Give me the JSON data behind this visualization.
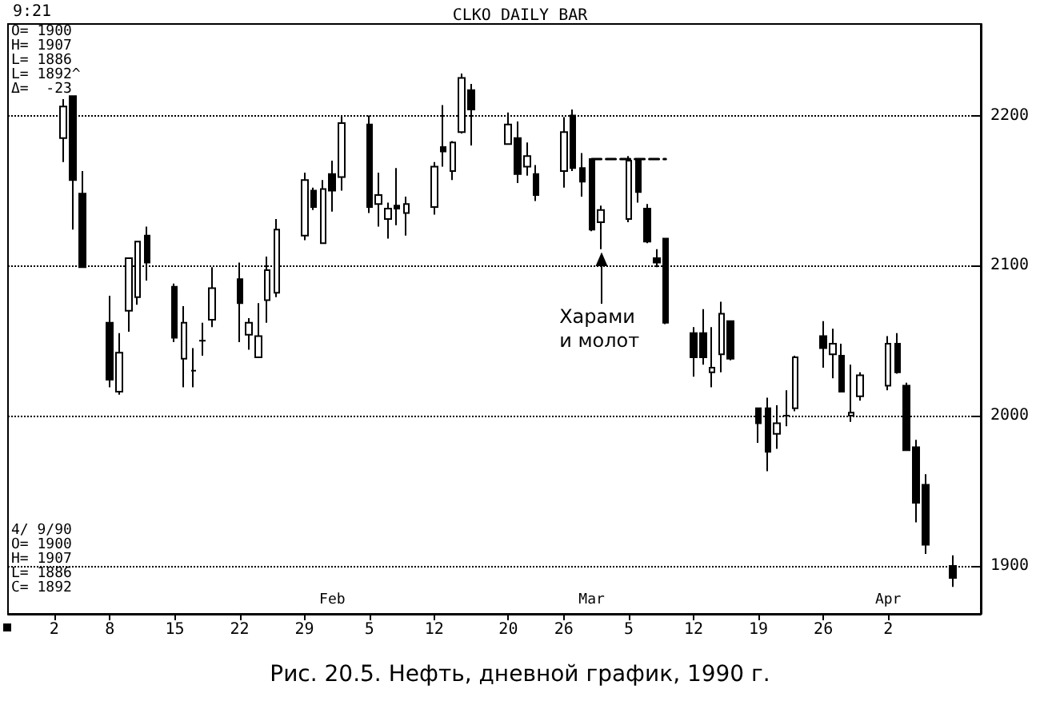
{
  "chart_data": {
    "type": "candlestick",
    "title": "CLKO DAILY BAR",
    "annotations": [
      "9:21",
      "O= 1900\nH= 1907\nL= 1886\nL= 1892^\nΔ=  -23",
      "4/ 9/90\nO= 1900\nH= 1907\nL= 1886\nC= 1892",
      {
        "text": "Харами\nи молот",
        "x": "1990-03-02",
        "y": 2111
      },
      "Рис. 20.5. Нефть, дневной график, 1990 г."
    ],
    "x": [
      "1990-01-03",
      "1990-01-04",
      "1990-01-05",
      "1990-01-08",
      "1990-01-09",
      "1990-01-10",
      "1990-01-11",
      "1990-01-12",
      "1990-01-15",
      "1990-01-16",
      "1990-01-17",
      "1990-01-18",
      "1990-01-19",
      "1990-01-22",
      "1990-01-23",
      "1990-01-24",
      "1990-01-25",
      "1990-01-26",
      "1990-01-29",
      "1990-01-30",
      "1990-01-31",
      "1990-02-01",
      "1990-02-02",
      "1990-02-05",
      "1990-02-06",
      "1990-02-07",
      "1990-02-08",
      "1990-02-09",
      "1990-02-12",
      "1990-02-13",
      "1990-02-14",
      "1990-02-15",
      "1990-02-16",
      "1990-02-20",
      "1990-02-21",
      "1990-02-22",
      "1990-02-23",
      "1990-02-26",
      "1990-02-27",
      "1990-02-28",
      "1990-03-01",
      "1990-03-02",
      "1990-03-05",
      "1990-03-06",
      "1990-03-07",
      "1990-03-08",
      "1990-03-09",
      "1990-03-12",
      "1990-03-13",
      "1990-03-14",
      "1990-03-15",
      "1990-03-16",
      "1990-03-19",
      "1990-03-20",
      "1990-03-21",
      "1990-03-22",
      "1990-03-23",
      "1990-03-26",
      "1990-03-27",
      "1990-03-28",
      "1990-03-29",
      "1990-03-30",
      "1990-04-02",
      "1990-04-03",
      "1990-04-04",
      "1990-04-05",
      "1990-04-06",
      "1990-04-09"
    ],
    "ohlc": [
      [
        2185,
        2211,
        2169,
        2206
      ],
      [
        2213,
        2213,
        2124,
        2157
      ],
      [
        2148,
        2163,
        2099,
        2099
      ],
      [
        2062,
        2080,
        2019,
        2024
      ],
      [
        2016,
        2055,
        2014,
        2042
      ],
      [
        2070,
        2105,
        2056,
        2105
      ],
      [
        2079,
        2116,
        2074,
        2116
      ],
      [
        2120,
        2126,
        2090,
        2102
      ],
      [
        2086,
        2088,
        2049,
        2052
      ],
      [
        2038,
        2073,
        2019,
        2062
      ],
      [
        2030,
        2045,
        2019,
        2030
      ],
      [
        2050,
        2062,
        2040,
        2050
      ],
      [
        2064,
        2099,
        2059,
        2085
      ],
      [
        2091,
        2102,
        2049,
        2075
      ],
      [
        2054,
        2065,
        2044,
        2062
      ],
      [
        2039,
        2075,
        2039,
        2053
      ],
      [
        2077,
        2106,
        2062,
        2097
      ],
      [
        2082,
        2131,
        2079,
        2124
      ],
      [
        2120,
        2162,
        2117,
        2157
      ],
      [
        2150,
        2152,
        2137,
        2139
      ],
      [
        2115,
        2157,
        2115,
        2151
      ],
      [
        2161,
        2170,
        2136,
        2150
      ],
      [
        2159,
        2200,
        2150,
        2195
      ],
      [
        2194,
        2200,
        2135,
        2139
      ],
      [
        2141,
        2162,
        2126,
        2147
      ],
      [
        2131,
        2142,
        2118,
        2138
      ],
      [
        2140,
        2165,
        2127,
        2138
      ],
      [
        2135,
        2146,
        2120,
        2141
      ],
      [
        2139,
        2169,
        2134,
        2166
      ],
      [
        2179,
        2207,
        2166,
        2176
      ],
      [
        2163,
        2183,
        2157,
        2182
      ],
      [
        2189,
        2228,
        2188,
        2225
      ],
      [
        2217,
        2221,
        2180,
        2204
      ],
      [
        2181,
        2202,
        2181,
        2194
      ],
      [
        2185,
        2196,
        2155,
        2161
      ],
      [
        2166,
        2182,
        2160,
        2173
      ],
      [
        2161,
        2167,
        2143,
        2147
      ],
      [
        2163,
        2199,
        2152,
        2189
      ],
      [
        2200,
        2204,
        2163,
        2165
      ],
      [
        2165,
        2175,
        2146,
        2156
      ],
      [
        2171,
        2171,
        2123,
        2124
      ],
      [
        2129,
        2140,
        2111,
        2137
      ],
      [
        2131,
        2173,
        2129,
        2170
      ],
      [
        2170,
        2171,
        2142,
        2149
      ],
      [
        2138,
        2141,
        2115,
        2116
      ],
      [
        2105,
        2111,
        2099,
        2102
      ],
      [
        2118,
        2118,
        2061,
        2062
      ],
      [
        2055,
        2059,
        2026,
        2039
      ],
      [
        2055,
        2071,
        2034,
        2039
      ],
      [
        2029,
        2059,
        2019,
        2032
      ],
      [
        2041,
        2076,
        2029,
        2068
      ],
      [
        2063,
        2063,
        2037,
        2038
      ],
      [
        2005,
        2005,
        1982,
        1995
      ],
      [
        2005,
        2012,
        1963,
        1976
      ],
      [
        1988,
        2007,
        1978,
        1995
      ],
      [
        2000,
        2017,
        1993,
        2000
      ],
      [
        2005,
        2040,
        2003,
        2039
      ],
      [
        2053,
        2063,
        2032,
        2045
      ],
      [
        2041,
        2058,
        2025,
        2048
      ],
      [
        2040,
        2048,
        2016,
        2016
      ],
      [
        2000,
        2034,
        1996,
        2002
      ],
      [
        2013,
        2029,
        2010,
        2027
      ],
      [
        2020,
        2053,
        2017,
        2048
      ],
      [
        2048,
        2055,
        2028,
        2029
      ],
      [
        2020,
        2022,
        1977,
        1977
      ],
      [
        1979,
        1984,
        1929,
        1942
      ],
      [
        1954,
        1961,
        1908,
        1914
      ],
      [
        1900,
        1907,
        1886,
        1892
      ]
    ],
    "series": [
      {
        "type": "line",
        "x": [
          "1990-03-01",
          "1990-03-09"
        ],
        "values": [
          2171,
          2171
        ],
        "color": "#000000",
        "line_style": "dashed"
      }
    ],
    "xlim": [
      "1989-12-28",
      "1990-04-12"
    ],
    "xticks": [
      {
        "value": "1990-01-02",
        "label": "2"
      },
      {
        "value": "1990-01-08",
        "label": "8"
      },
      {
        "value": "1990-01-15",
        "label": "15"
      },
      {
        "value": "1990-01-22",
        "label": "22"
      },
      {
        "value": "1990-01-29",
        "label": "29"
      },
      {
        "value": "1990-02-05",
        "label": "5"
      },
      {
        "value": "1990-02-12",
        "label": "12"
      },
      {
        "value": "1990-02-20",
        "label": "20"
      },
      {
        "value": "1990-02-26",
        "label": "26"
      },
      {
        "value": "1990-03-05",
        "label": "5"
      },
      {
        "value": "1990-03-12",
        "label": "12"
      },
      {
        "value": "1990-03-19",
        "label": "19"
      },
      {
        "value": "1990-03-26",
        "label": "26"
      },
      {
        "value": "1990-04-02",
        "label": "2"
      }
    ],
    "x2lim": [
      "1989-12-28",
      "1990-04-12"
    ],
    "x2ticks": [
      {
        "value": "1990-02-01",
        "label": "Feb"
      },
      {
        "value": "1990-03-01",
        "label": "Mar"
      },
      {
        "value": "1990-04-02",
        "label": "Apr"
      }
    ],
    "ylim": [
      1868,
      2261
    ],
    "yticks": [
      1900,
      2000,
      2100,
      2200
    ],
    "grid": "y"
  }
}
